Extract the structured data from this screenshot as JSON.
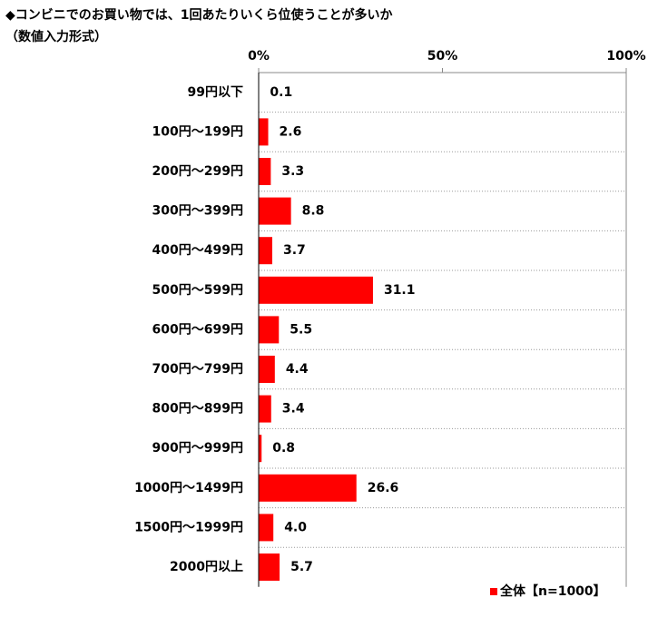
{
  "chart_data": {
    "type": "bar",
    "orientation": "horizontal",
    "title": "◆コンビニでのお買い物では、1回あたりいくら位使うことが多いか",
    "subtitle": "（数値入力形式）",
    "categories": [
      "99円以下",
      "100円～199円",
      "200円～299円",
      "300円～399円",
      "400円～499円",
      "500円～599円",
      "600円～699円",
      "700円～799円",
      "800円～899円",
      "900円～999円",
      "1000円～1499円",
      "1500円～1999円",
      "2000円以上"
    ],
    "series": [
      {
        "name": "全体【n=1000】",
        "color": "#ff0000",
        "values": [
          0.1,
          2.6,
          3.3,
          8.8,
          3.7,
          31.1,
          5.5,
          4.4,
          3.4,
          0.8,
          26.6,
          4.0,
          5.7
        ],
        "value_labels": [
          "0.1",
          "2.6",
          "3.3",
          "8.8",
          "3.7",
          "31.1",
          "5.5",
          "4.4",
          "3.4",
          "0.8",
          "26.6",
          "4.0",
          "5.7"
        ]
      }
    ],
    "xlim": [
      0,
      100
    ],
    "xticks": [
      {
        "value": 0,
        "label": "0%"
      },
      {
        "value": 50,
        "label": "50%"
      },
      {
        "value": 100,
        "label": "100%"
      }
    ],
    "legend": "bottom-right"
  }
}
